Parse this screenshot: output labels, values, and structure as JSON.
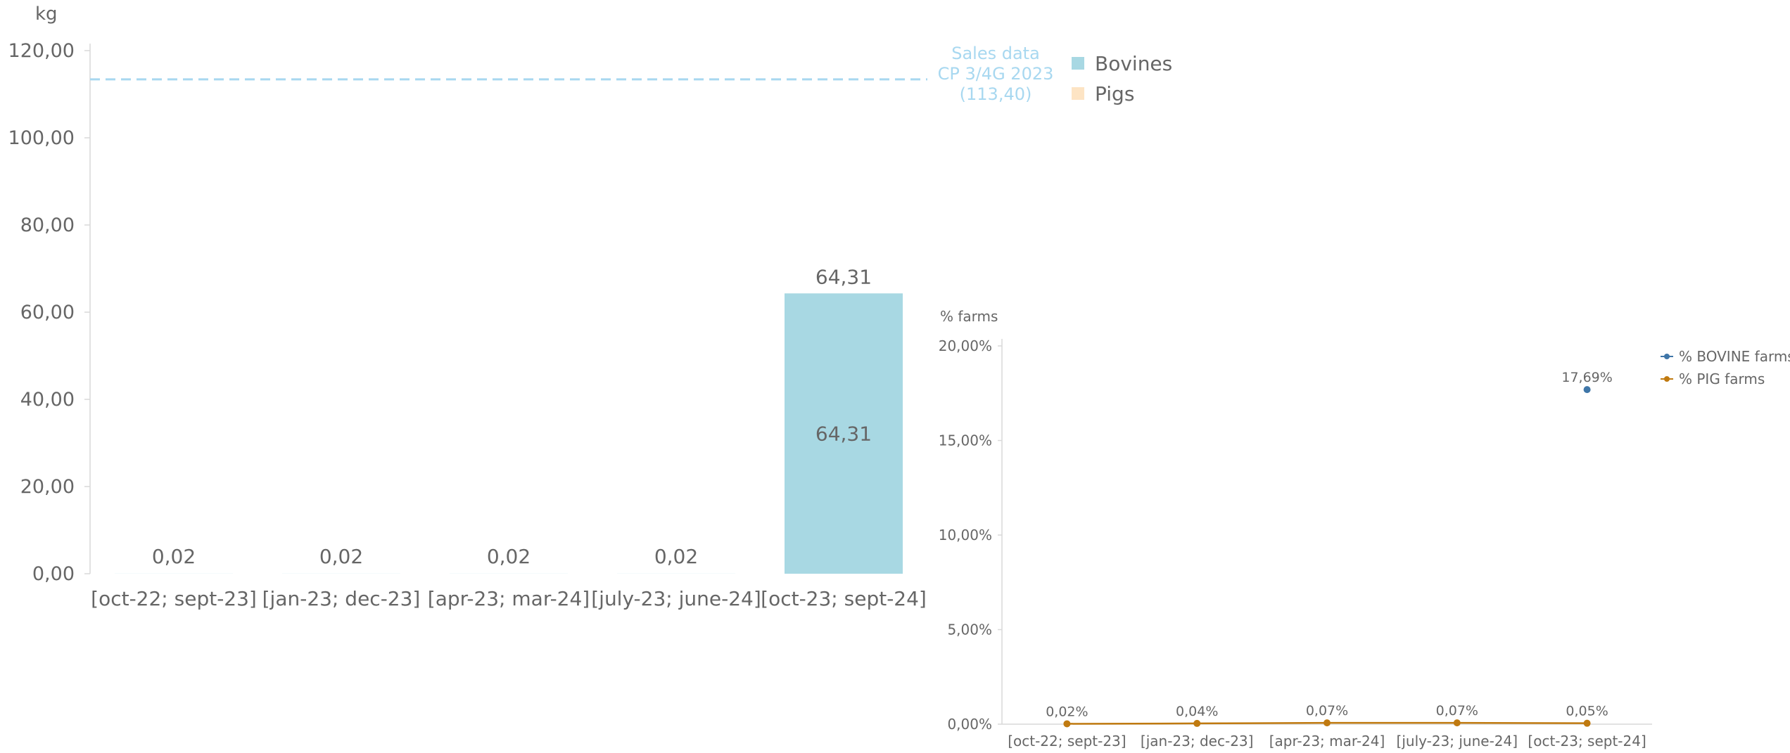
{
  "chart_data": [
    {
      "type": "bar",
      "ylabel": "kg",
      "ylim": [
        0,
        120
      ],
      "yticks": [
        "0,00",
        "20,00",
        "40,00",
        "60,00",
        "80,00",
        "100,00",
        "120,00"
      ],
      "categories": [
        "[oct-22; sept-23]",
        "[jan-23; dec-23]",
        "[apr-23; mar-24]",
        "[july-23; june-24]",
        "[oct-23; sept-24]"
      ],
      "series": [
        {
          "name": "Bovines",
          "color": "#a8d8e3",
          "values": [
            0.02,
            0.02,
            0.02,
            0.02,
            64.31
          ],
          "data_labels": [
            "0,02",
            "0,02",
            "0,02",
            "0,02",
            "64,31"
          ]
        },
        {
          "name": "Pigs",
          "color": "#fde4c4",
          "values": [
            0,
            0,
            0,
            0,
            0
          ],
          "data_labels": [
            "",
            "",
            "",
            "",
            ""
          ]
        }
      ],
      "total_labels": [
        "",
        "",
        "",
        "",
        "64,31"
      ],
      "reference_line": {
        "value": 113.4,
        "label_lines": [
          "Sales data",
          "CP 3/4G 2023",
          "(113,40)"
        ],
        "color": "#a8d8f0"
      },
      "legend": "top-right"
    },
    {
      "type": "line",
      "ylabel": "% farms",
      "ylim": [
        0,
        20
      ],
      "yticks": [
        "0,00%",
        "5,00%",
        "10,00%",
        "15,00%",
        "20,00%"
      ],
      "categories": [
        "[oct-22; sept-23]",
        "[jan-23; dec-23]",
        "[apr-23; mar-24]",
        "[july-23; june-24]",
        "[oct-23; sept-24]"
      ],
      "series": [
        {
          "name": "% BOVINE farms",
          "color": "#3f76a8",
          "values": [
            null,
            null,
            null,
            null,
            17.69
          ],
          "data_labels": [
            "",
            "",
            "",
            "",
            "17,69%"
          ]
        },
        {
          "name": "% PIG farms",
          "color": "#c07a10",
          "values": [
            0.02,
            0.04,
            0.07,
            0.07,
            0.05
          ],
          "data_labels": [
            "0,02%",
            "0,04%",
            "0,07%",
            "0,07%",
            "0,05%"
          ]
        }
      ],
      "legend": "top-right"
    }
  ]
}
